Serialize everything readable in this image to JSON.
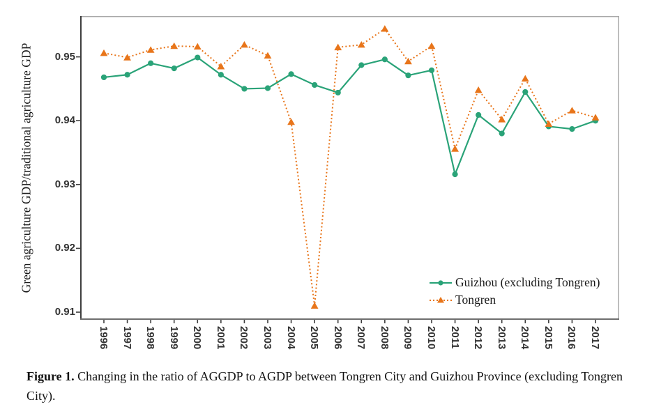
{
  "figure": {
    "caption_label": "Figure 1.",
    "caption_text": "Changing in the ratio of AGGDP to AGDP between Tongren City and Guizhou Province (excluding Tongren City)."
  },
  "chart_data": {
    "type": "line",
    "title": "",
    "xlabel": "",
    "ylabel": "Green agriculture GDP/traditional agriculture GDP",
    "grid": false,
    "legend_position": "inside-bottom-right",
    "ylim": [
      0.9088,
      0.9564
    ],
    "yticks": [
      "0.91",
      "0.92",
      "0.93",
      "0.94",
      "0.95"
    ],
    "categories": [
      "1996",
      "1997",
      "1998",
      "1999",
      "2000",
      "2001",
      "2002",
      "2003",
      "2004",
      "2005",
      "2006",
      "2007",
      "2008",
      "2009",
      "2010",
      "2011",
      "2012",
      "2013",
      "2014",
      "2015",
      "2016",
      "2017"
    ],
    "series": [
      {
        "name": "Guizhou (excluding Tongren)",
        "color": "#2aa378",
        "marker": "circle",
        "line": "solid",
        "values": [
          0.9468,
          0.9472,
          0.949,
          0.9482,
          0.9499,
          0.9472,
          0.945,
          0.9451,
          0.9473,
          0.9456,
          0.9444,
          0.9487,
          0.9496,
          0.9471,
          0.9479,
          0.9316,
          0.9409,
          0.938,
          0.9445,
          0.9391,
          0.9387,
          0.94
        ]
      },
      {
        "name": "Tongren",
        "color": "#e8751a",
        "marker": "triangle",
        "line": "dashed",
        "values": [
          0.9506,
          0.9499,
          0.9511,
          0.9517,
          0.9516,
          0.9485,
          0.9519,
          0.9502,
          0.9398,
          0.911,
          0.9515,
          0.9519,
          0.9544,
          0.9493,
          0.9517,
          0.9356,
          0.9448,
          0.9402,
          0.9466,
          0.9395,
          0.9416,
          0.9405
        ]
      }
    ],
    "axis_colors": {
      "left_axis": "#3d3d3d",
      "bottom_axis": "#6e6e6e",
      "frame": "#a8a8a8",
      "tick": "#3d3d3d"
    }
  }
}
